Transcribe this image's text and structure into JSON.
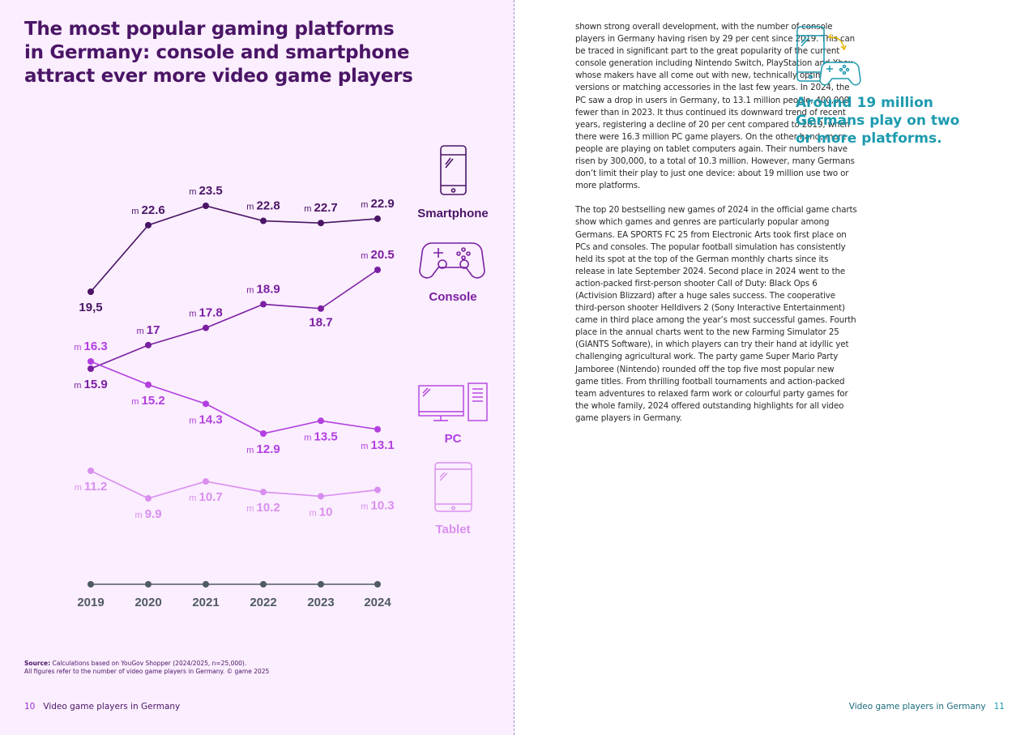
{
  "left_page": {
    "title": "The most popular gaming platforms in Germany: console and smartphone attract ever more video game players",
    "source_label": "Source:",
    "source_text": "Calculations based on YouGov Shopper (2024/2025, n=25,000).",
    "source_note": "All figures refer to the number of video game players in Germany. © game 2025",
    "footer": {
      "page_number": "10",
      "title": "Video game players in Germany"
    }
  },
  "right_page": {
    "paragraphs": [
      "shown strong overall development, with the number of console players in Germany having risen by 29 per cent since 2019. This can be traced in significant part to the great popularity of the current console generation including Nintendo Switch, PlayStation and Xbox, whose makers have all come out with new, technically optimised versions or matching accessories in the last few years. In 2024, the PC saw a drop in users in Germany, to 13.1 million people, 400,000 fewer than in 2023. It thus continued its downward trend of recent years, registering a decline of 20 per cent compared to 2019, when there were 16.3 million PC game players. On the other hand, more people are playing on tablet computers again. Their numbers have risen by 300,000, to a total of 10.3 million. However, many Germans don’t limit their play to just one device: about 19 million use two or more platforms.",
      "The top 20 bestselling new games of 2024 in the official game charts show which games and genres are particularly popular among Germans. EA SPORTS FC 25 from Electronic Arts took first place on PCs and consoles. The popular football simulation has consistently held its spot at the top of the German monthly charts since its release in late September 2024. Second place in 2024 went to the action-packed first-person shooter Call of Duty: Black Ops 6 (Activision Blizzard) after a huge sales success. The cooperative third-person shooter Helldivers 2 (Sony Interactive Entertainment) came in third place among the year’s most successful games. Fourth place in the annual charts went to the new Farming Simulator 25 (GIANTS Software), in which players can try their hand at idyllic yet challenging agricultural work. The party game Super Mario Party Jamboree (Nintendo) rounded off the top five most popular new game titles. From thrilling football tournaments and action-packed team adventures to relaxed farm work or colourful party games for the whole family, 2024 offered outstanding highlights for all video game players in Germany."
    ],
    "callout": "Around 19 million Germans play on two or more platforms.",
    "callout_icon": "smartphone-console-icon",
    "footer": {
      "title": "Video game players in Germany",
      "page_number": "11"
    }
  },
  "colors": {
    "title": "#4a1566",
    "smartphone": "#4a1566",
    "console": "#7a1fa2",
    "pc": "#b23fe0",
    "tablet": "#d98fef",
    "axis": "#4f5a63",
    "callout": "#1c9aae"
  },
  "chart_data": {
    "type": "line",
    "x": [
      "2019",
      "2020",
      "2021",
      "2022",
      "2023",
      "2024"
    ],
    "value_prefix": "m",
    "series": [
      {
        "name": "Smartphone",
        "icon": "smartphone-icon",
        "values": [
          19.5,
          22.6,
          23.5,
          22.8,
          22.7,
          22.9
        ],
        "labels": [
          "19,5",
          "22.6",
          "23.5",
          "22.8",
          "22.7",
          "22.9"
        ],
        "prefixed": [
          false,
          true,
          true,
          true,
          true,
          true
        ]
      },
      {
        "name": "Console",
        "icon": "gamepad-icon",
        "values": [
          15.9,
          17,
          17.8,
          18.9,
          18.7,
          20.5
        ],
        "labels": [
          "15.9",
          "17",
          "17.8",
          "18.9",
          "18.7",
          "20.5"
        ],
        "prefixed": [
          true,
          true,
          true,
          true,
          false,
          true
        ]
      },
      {
        "name": "PC",
        "icon": "desktop-pc-icon",
        "values": [
          16.3,
          15.2,
          14.3,
          12.9,
          13.5,
          13.1
        ],
        "labels": [
          "16.3",
          "15.2",
          "14.3",
          "12.9",
          "13.5",
          "13.1"
        ],
        "prefixed": [
          true,
          true,
          true,
          true,
          true,
          true
        ]
      },
      {
        "name": "Tablet",
        "icon": "tablet-icon",
        "values": [
          11.2,
          9.9,
          10.7,
          10.2,
          10,
          10.3
        ],
        "labels": [
          "11.2",
          "9.9",
          "10.7",
          "10.2",
          "10",
          "10.3"
        ],
        "prefixed": [
          true,
          true,
          true,
          true,
          true,
          true
        ]
      }
    ],
    "grid": false,
    "legend": "right"
  }
}
